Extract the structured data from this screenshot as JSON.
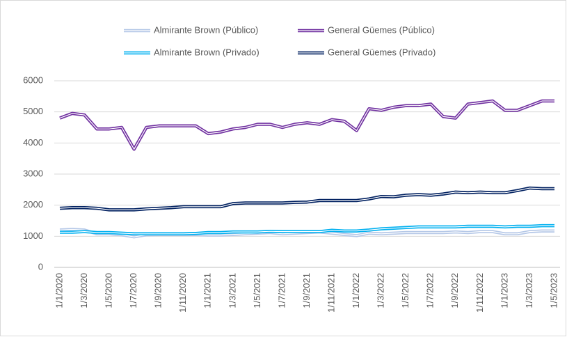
{
  "chart_data": {
    "type": "line",
    "categories": [
      "1/1/2020",
      null,
      "1/3/2020",
      null,
      "1/5/2020",
      null,
      "1/7/2020",
      null,
      "1/9/2020",
      null,
      "1/11/2020",
      null,
      "1/1/2021",
      null,
      "1/3/2021",
      null,
      "1/5/2021",
      null,
      "1/7/2021",
      null,
      "1/9/2021",
      null,
      "1/11/2021",
      null,
      "1/1/2022",
      null,
      "1/3/2022",
      null,
      "1/5/2022",
      null,
      "1/7/2022",
      null,
      "1/9/2022",
      null,
      "1/11/2022",
      null,
      "1/1/2023",
      null,
      "1/3/2023",
      null,
      "1/5/2023"
    ],
    "series": [
      {
        "name": "Almirante Brown (Público)",
        "color": "#b4c7e7",
        "values": [
          1200,
          1220,
          1200,
          1080,
          1080,
          1050,
          980,
          1050,
          1060,
          1060,
          1060,
          1060,
          1040,
          1040,
          1060,
          1080,
          1100,
          1120,
          1080,
          1100,
          1120,
          1140,
          1100,
          1060,
          1020,
          1100,
          1080,
          1100,
          1120,
          1120,
          1120,
          1120,
          1140,
          1120,
          1150,
          1150,
          1080,
          1080,
          1150,
          1170,
          1170
        ]
      },
      {
        "name": "General Güemes (Público)",
        "color": "#7030a0",
        "values": [
          4800,
          4950,
          4900,
          4450,
          4450,
          4500,
          3800,
          4500,
          4550,
          4550,
          4550,
          4550,
          4300,
          4350,
          4450,
          4500,
          4600,
          4600,
          4500,
          4600,
          4650,
          4600,
          4750,
          4700,
          4400,
          5100,
          5050,
          5150,
          5200,
          5200,
          5250,
          4850,
          4800,
          5250,
          5300,
          5350,
          5050,
          5050,
          5200,
          5350,
          5350
        ]
      },
      {
        "name": "Almirante Brown (Privado)",
        "color": "#00b0f0",
        "values": [
          1130,
          1130,
          1150,
          1120,
          1120,
          1100,
          1080,
          1080,
          1080,
          1080,
          1080,
          1090,
          1120,
          1120,
          1140,
          1140,
          1140,
          1160,
          1150,
          1150,
          1150,
          1150,
          1190,
          1170,
          1170,
          1200,
          1240,
          1260,
          1280,
          1300,
          1300,
          1300,
          1300,
          1320,
          1320,
          1320,
          1300,
          1320,
          1320,
          1340,
          1340
        ]
      },
      {
        "name": "General Güemes (Privado)",
        "color": "#002060",
        "values": [
          1900,
          1920,
          1920,
          1900,
          1850,
          1850,
          1850,
          1880,
          1900,
          1920,
          1950,
          1950,
          1950,
          1950,
          2050,
          2070,
          2070,
          2070,
          2070,
          2090,
          2100,
          2150,
          2150,
          2150,
          2150,
          2200,
          2280,
          2270,
          2320,
          2340,
          2320,
          2360,
          2420,
          2400,
          2420,
          2400,
          2400,
          2470,
          2550,
          2530,
          2530
        ]
      }
    ],
    "ylim": [
      0,
      6000
    ],
    "yticks": [
      0,
      1000,
      2000,
      3000,
      4000,
      5000,
      6000
    ],
    "grid": true,
    "legend": "top"
  }
}
